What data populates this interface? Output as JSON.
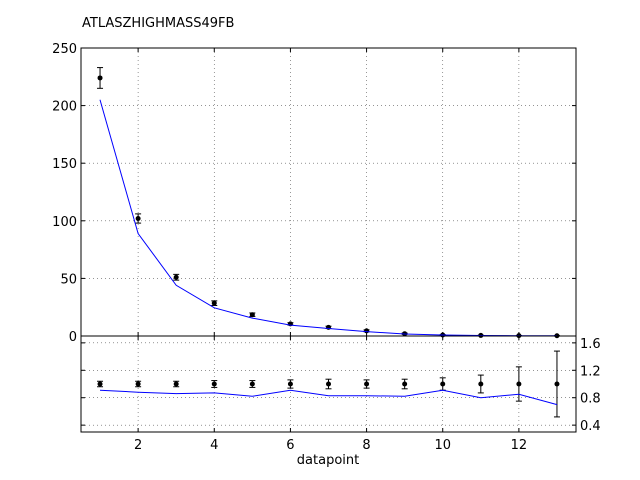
{
  "chart_data": {
    "type": "scatter",
    "title": "ATLASZHIGHMASS49FB",
    "xlabel": "datapoint",
    "ylabel": "",
    "xlim": [
      0.5,
      13.5
    ],
    "xticks": [
      "2",
      "4",
      "6",
      "8",
      "10",
      "12"
    ],
    "grid": true,
    "main": {
      "ylim": [
        0,
        250
      ],
      "yticks": [
        "0",
        "50",
        "100",
        "150",
        "200",
        "250"
      ],
      "series": [
        {
          "kind": "points_with_errors",
          "color": "#000000",
          "x": [
            1,
            2,
            3,
            4,
            5,
            6,
            7,
            8,
            9,
            10,
            11,
            12,
            13
          ],
          "y": [
            224,
            102,
            51,
            28.5,
            18.5,
            10.5,
            7.5,
            4.5,
            2.0,
            0.9,
            0.5,
            0.3,
            0.2
          ],
          "err": [
            9,
            4,
            2.5,
            2,
            1.5,
            1,
            1,
            0.8,
            0.5,
            0.3,
            0.2,
            0.15,
            0.1
          ]
        },
        {
          "kind": "line",
          "color": "#0000ff",
          "x": [
            1,
            2,
            3,
            4,
            5,
            6,
            7,
            8,
            9,
            10,
            11,
            12,
            13
          ],
          "y": [
            205,
            89,
            44,
            24.5,
            15.5,
            9.5,
            6.5,
            3.8,
            1.7,
            0.85,
            0.42,
            0.27,
            0.15
          ]
        }
      ]
    },
    "ratio": {
      "ylim": [
        0.3,
        1.7
      ],
      "yticks": [
        "0.4",
        "0.8",
        "1.2",
        "1.6"
      ],
      "series": [
        {
          "kind": "points_with_errors",
          "color": "#000000",
          "x": [
            1,
            2,
            3,
            4,
            5,
            6,
            7,
            8,
            9,
            10,
            11,
            12,
            13
          ],
          "y": [
            1.0,
            1.0,
            1.0,
            1.0,
            1.0,
            1.0,
            1.0,
            1.0,
            1.0,
            1.0,
            1.0,
            1.0,
            1.0
          ],
          "err": [
            0.04,
            0.04,
            0.04,
            0.05,
            0.05,
            0.06,
            0.07,
            0.06,
            0.07,
            0.09,
            0.13,
            0.25,
            0.48
          ]
        },
        {
          "kind": "line",
          "color": "#0000ff",
          "x": [
            1,
            2,
            3,
            4,
            5,
            6,
            7,
            8,
            9,
            10,
            11,
            12,
            13
          ],
          "y": [
            0.91,
            0.88,
            0.86,
            0.87,
            0.82,
            0.91,
            0.83,
            0.83,
            0.82,
            0.91,
            0.8,
            0.85,
            0.7
          ]
        }
      ]
    }
  }
}
